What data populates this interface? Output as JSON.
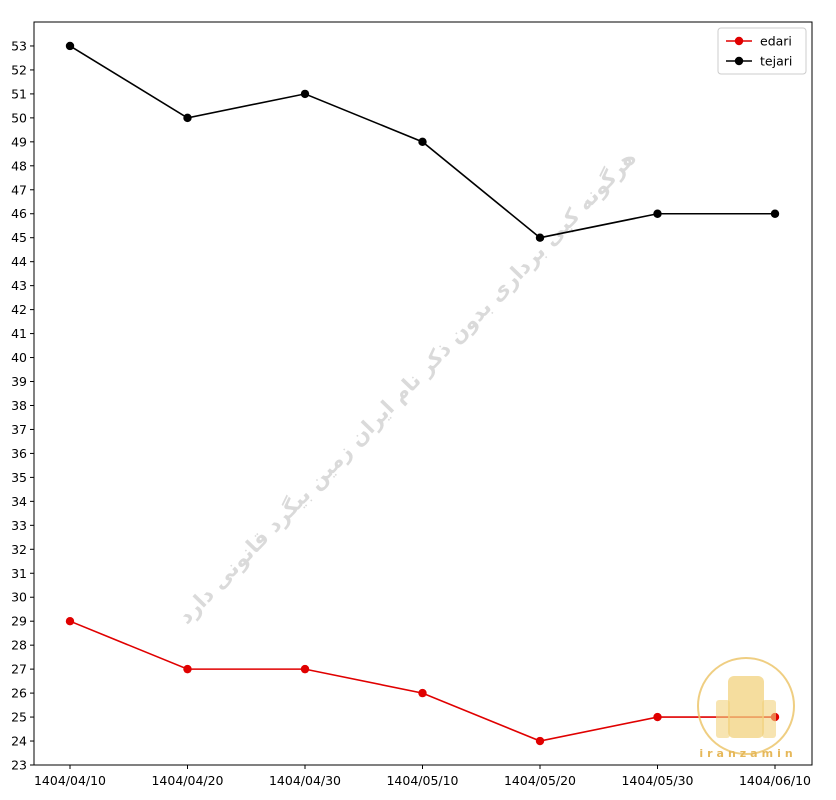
{
  "watermark": "هرگونه کپی برداری بدون ذکر نام ایران زمین بیگرد قانونی دارد",
  "logo_text": "iranzamin",
  "chart_data": {
    "type": "line",
    "title": "",
    "xlabel": "",
    "ylabel": "",
    "x": [
      "1404/04/10",
      "1404/04/20",
      "1404/04/30",
      "1404/05/10",
      "1404/05/20",
      "1404/05/30",
      "1404/06/10"
    ],
    "ylim": [
      23,
      54
    ],
    "yticks": [
      23,
      24,
      25,
      26,
      27,
      28,
      29,
      30,
      31,
      32,
      33,
      34,
      35,
      36,
      37,
      38,
      39,
      40,
      41,
      42,
      43,
      44,
      45,
      46,
      47,
      48,
      49,
      50,
      51,
      52,
      53
    ],
    "grid": false,
    "legend_position": "top-right",
    "series": [
      {
        "name": "edari",
        "color": "#e00000",
        "values": [
          29,
          27,
          27,
          26,
          24,
          25,
          25
        ]
      },
      {
        "name": "tejari",
        "color": "#000000",
        "values": [
          53,
          50,
          51,
          49,
          45,
          46,
          46
        ]
      }
    ]
  }
}
